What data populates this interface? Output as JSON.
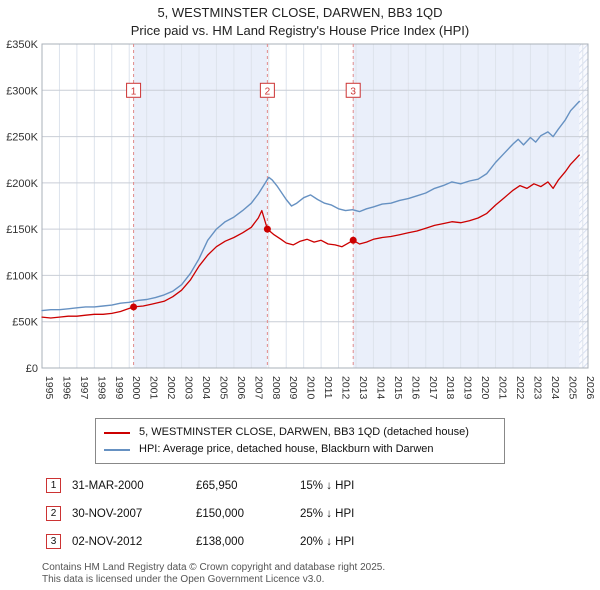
{
  "title": {
    "line1": "5, WESTMINSTER CLOSE, DARWEN, BB3 1QD",
    "line2": "Price paid vs. HM Land Registry's House Price Index (HPI)"
  },
  "chart_data": {
    "type": "line",
    "x_range": [
      1995,
      2026.3
    ],
    "y_range": [
      0,
      350
    ],
    "y_ticks": [
      {
        "v": 0,
        "label": "£0"
      },
      {
        "v": 50,
        "label": "£50K"
      },
      {
        "v": 100,
        "label": "£100K"
      },
      {
        "v": 150,
        "label": "£150K"
      },
      {
        "v": 200,
        "label": "£200K"
      },
      {
        "v": 250,
        "label": "£250K"
      },
      {
        "v": 300,
        "label": "£300K"
      },
      {
        "v": 350,
        "label": "£350K"
      }
    ],
    "x_ticks": [
      1995,
      1996,
      1997,
      1998,
      1999,
      2000,
      2001,
      2002,
      2003,
      2004,
      2005,
      2006,
      2007,
      2008,
      2009,
      2010,
      2011,
      2012,
      2013,
      2014,
      2015,
      2016,
      2017,
      2018,
      2019,
      2020,
      2021,
      2022,
      2023,
      2024,
      2025,
      2026
    ],
    "colors": {
      "band": "#eaeffa",
      "hatch": "#b9c6e4",
      "marker": "#cc0000",
      "sale_line": "#e08a8a",
      "red": "#cc0000",
      "blue": "#6691c2"
    },
    "bands": [
      [
        2000.25,
        2007.92
      ],
      [
        2012.84,
        2026.3
      ]
    ],
    "future_band": [
      2025.8,
      2026.3
    ],
    "sale_box_y": 300,
    "sales": [
      {
        "n": "1",
        "x": 2000.25,
        "y": 65.95
      },
      {
        "n": "2",
        "x": 2007.92,
        "y": 150
      },
      {
        "n": "3",
        "x": 2012.84,
        "y": 138
      }
    ],
    "series": [
      {
        "name": "5, WESTMINSTER CLOSE, DARWEN, BB3 1QD (detached house)",
        "color": "#cc0000",
        "width": 1.3,
        "points": [
          [
            1995.0,
            55
          ],
          [
            1995.5,
            54
          ],
          [
            1996.0,
            55
          ],
          [
            1996.5,
            56
          ],
          [
            1997.0,
            56
          ],
          [
            1997.5,
            57
          ],
          [
            1998.0,
            58
          ],
          [
            1998.5,
            58
          ],
          [
            1999.0,
            59
          ],
          [
            1999.5,
            61
          ],
          [
            2000.25,
            65.95
          ],
          [
            2000.8,
            67
          ],
          [
            2001.3,
            69
          ],
          [
            2002.0,
            72
          ],
          [
            2002.5,
            77
          ],
          [
            2003.0,
            84
          ],
          [
            2003.5,
            95
          ],
          [
            2004.0,
            110
          ],
          [
            2004.5,
            122
          ],
          [
            2005.0,
            131
          ],
          [
            2005.5,
            137
          ],
          [
            2006.0,
            141
          ],
          [
            2006.5,
            146
          ],
          [
            2007.0,
            152
          ],
          [
            2007.4,
            162
          ],
          [
            2007.6,
            170
          ],
          [
            2007.92,
            150
          ],
          [
            2008.3,
            144
          ],
          [
            2008.7,
            139
          ],
          [
            2009.0,
            135
          ],
          [
            2009.4,
            133
          ],
          [
            2009.8,
            137
          ],
          [
            2010.2,
            139
          ],
          [
            2010.6,
            136
          ],
          [
            2011.0,
            138
          ],
          [
            2011.4,
            134
          ],
          [
            2011.8,
            133
          ],
          [
            2012.2,
            131
          ],
          [
            2012.84,
            138
          ],
          [
            2013.2,
            134
          ],
          [
            2013.6,
            136
          ],
          [
            2014.0,
            139
          ],
          [
            2014.5,
            141
          ],
          [
            2015.0,
            142
          ],
          [
            2015.5,
            144
          ],
          [
            2016.0,
            146
          ],
          [
            2016.5,
            148
          ],
          [
            2017.0,
            151
          ],
          [
            2017.5,
            154
          ],
          [
            2018.0,
            156
          ],
          [
            2018.5,
            158
          ],
          [
            2019.0,
            157
          ],
          [
            2019.5,
            159
          ],
          [
            2020.0,
            162
          ],
          [
            2020.5,
            167
          ],
          [
            2021.0,
            176
          ],
          [
            2021.5,
            184
          ],
          [
            2022.0,
            192
          ],
          [
            2022.4,
            197
          ],
          [
            2022.8,
            194
          ],
          [
            2023.2,
            199
          ],
          [
            2023.6,
            196
          ],
          [
            2024.0,
            201
          ],
          [
            2024.3,
            194
          ],
          [
            2024.6,
            203
          ],
          [
            2025.0,
            212
          ],
          [
            2025.3,
            220
          ],
          [
            2025.6,
            226
          ],
          [
            2025.8,
            230
          ]
        ]
      },
      {
        "name": "HPI: Average price, detached house, Blackburn with Darwen",
        "color": "#6691c2",
        "width": 1.4,
        "points": [
          [
            1995.0,
            62
          ],
          [
            1995.5,
            63
          ],
          [
            1996.0,
            63
          ],
          [
            1996.5,
            64
          ],
          [
            1997.0,
            65
          ],
          [
            1997.5,
            66
          ],
          [
            1998.0,
            66
          ],
          [
            1998.5,
            67
          ],
          [
            1999.0,
            68
          ],
          [
            1999.5,
            70
          ],
          [
            2000.0,
            71
          ],
          [
            2000.5,
            73
          ],
          [
            2001.0,
            74
          ],
          [
            2001.5,
            76
          ],
          [
            2002.0,
            79
          ],
          [
            2002.5,
            83
          ],
          [
            2003.0,
            90
          ],
          [
            2003.5,
            102
          ],
          [
            2004.0,
            118
          ],
          [
            2004.5,
            138
          ],
          [
            2005.0,
            150
          ],
          [
            2005.5,
            158
          ],
          [
            2006.0,
            163
          ],
          [
            2006.5,
            170
          ],
          [
            2007.0,
            178
          ],
          [
            2007.4,
            188
          ],
          [
            2007.8,
            200
          ],
          [
            2008.0,
            206
          ],
          [
            2008.2,
            203
          ],
          [
            2008.5,
            196
          ],
          [
            2009.0,
            182
          ],
          [
            2009.3,
            175
          ],
          [
            2009.6,
            178
          ],
          [
            2010.0,
            184
          ],
          [
            2010.4,
            187
          ],
          [
            2010.8,
            182
          ],
          [
            2011.2,
            178
          ],
          [
            2011.6,
            176
          ],
          [
            2012.0,
            172
          ],
          [
            2012.4,
            170
          ],
          [
            2012.8,
            171
          ],
          [
            2013.2,
            169
          ],
          [
            2013.6,
            172
          ],
          [
            2014.0,
            174
          ],
          [
            2014.5,
            177
          ],
          [
            2015.0,
            178
          ],
          [
            2015.5,
            181
          ],
          [
            2016.0,
            183
          ],
          [
            2016.5,
            186
          ],
          [
            2017.0,
            189
          ],
          [
            2017.5,
            194
          ],
          [
            2018.0,
            197
          ],
          [
            2018.5,
            201
          ],
          [
            2019.0,
            199
          ],
          [
            2019.5,
            202
          ],
          [
            2020.0,
            204
          ],
          [
            2020.5,
            210
          ],
          [
            2021.0,
            222
          ],
          [
            2021.5,
            232
          ],
          [
            2022.0,
            242
          ],
          [
            2022.3,
            247
          ],
          [
            2022.6,
            241
          ],
          [
            2023.0,
            249
          ],
          [
            2023.3,
            244
          ],
          [
            2023.6,
            251
          ],
          [
            2024.0,
            255
          ],
          [
            2024.3,
            250
          ],
          [
            2024.6,
            258
          ],
          [
            2025.0,
            268
          ],
          [
            2025.3,
            278
          ],
          [
            2025.6,
            284
          ],
          [
            2025.8,
            288
          ]
        ]
      }
    ]
  },
  "legend": [
    "5, WESTMINSTER CLOSE, DARWEN, BB3 1QD (detached house)",
    "HPI: Average price, detached house, Blackburn with Darwen"
  ],
  "transactions": [
    {
      "num": "1",
      "date": "31-MAR-2000",
      "price": "£65,950",
      "hpi": "15% ↓ HPI"
    },
    {
      "num": "2",
      "date": "30-NOV-2007",
      "price": "£150,000",
      "hpi": "25% ↓ HPI"
    },
    {
      "num": "3",
      "date": "02-NOV-2012",
      "price": "£138,000",
      "hpi": "20% ↓ HPI"
    }
  ],
  "footer": {
    "line1": "Contains HM Land Registry data © Crown copyright and database right 2025.",
    "line2": "This data is licensed under the Open Government Licence v3.0."
  }
}
